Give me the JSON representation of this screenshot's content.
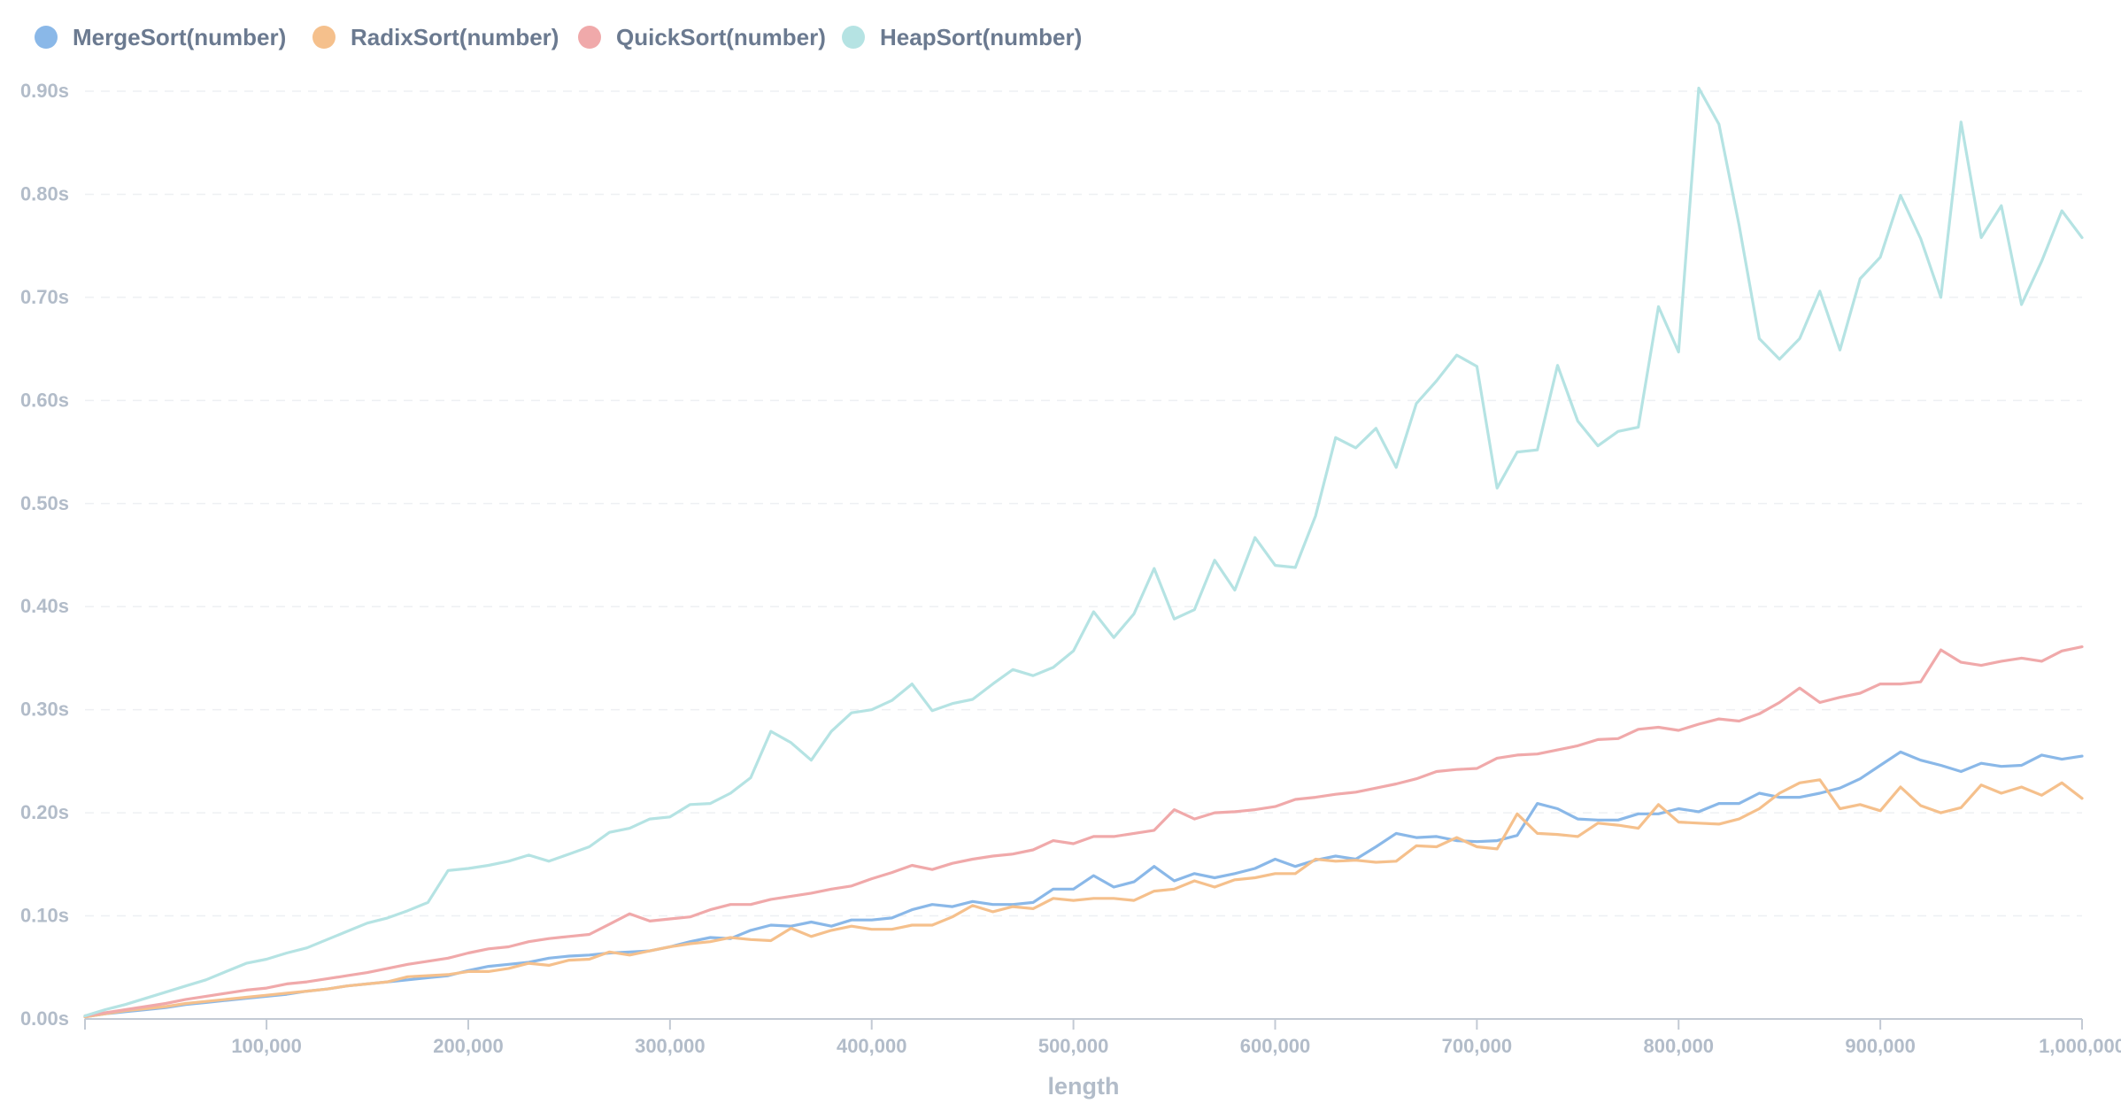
{
  "chart_data": {
    "type": "line",
    "title": "",
    "xlabel": "length",
    "ylabel": "",
    "xlim": [
      10000,
      1000000
    ],
    "ylim": [
      0,
      0.9
    ],
    "grid": "horizontal dashed",
    "legend_position": "top-left",
    "x_ticks": [
      100000,
      200000,
      300000,
      400000,
      500000,
      600000,
      700000,
      800000,
      900000,
      1000000
    ],
    "x_tick_labels": [
      "100,000",
      "200,000",
      "300,000",
      "400,000",
      "500,000",
      "600,000",
      "700,000",
      "800,000",
      "900,000",
      "1,000,000"
    ],
    "y_ticks": [
      0,
      0.1,
      0.2,
      0.3,
      0.4,
      0.5,
      0.6,
      0.7,
      0.8,
      0.9
    ],
    "y_tick_labels": [
      "0.00s",
      "0.10s",
      "0.20s",
      "0.30s",
      "0.40s",
      "0.50s",
      "0.60s",
      "0.70s",
      "0.80s",
      "0.90s"
    ],
    "x": [
      10000,
      20000,
      30000,
      40000,
      50000,
      60000,
      70000,
      80000,
      90000,
      100000,
      110000,
      120000,
      130000,
      140000,
      150000,
      160000,
      170000,
      180000,
      190000,
      200000,
      210000,
      220000,
      230000,
      240000,
      250000,
      260000,
      270000,
      280000,
      290000,
      300000,
      310000,
      320000,
      330000,
      340000,
      350000,
      360000,
      370000,
      380000,
      390000,
      400000,
      410000,
      420000,
      430000,
      440000,
      450000,
      460000,
      470000,
      480000,
      490000,
      500000,
      510000,
      520000,
      530000,
      540000,
      550000,
      560000,
      570000,
      580000,
      590000,
      600000,
      610000,
      620000,
      630000,
      640000,
      650000,
      660000,
      670000,
      680000,
      690000,
      700000,
      710000,
      720000,
      730000,
      740000,
      750000,
      760000,
      770000,
      780000,
      790000,
      800000,
      810000,
      820000,
      830000,
      840000,
      850000,
      860000,
      870000,
      880000,
      890000,
      900000,
      910000,
      920000,
      930000,
      940000,
      950000,
      960000,
      970000,
      980000,
      990000,
      1000000
    ],
    "series": [
      {
        "name": "MergeSort(number)",
        "color": "#8ab8e8",
        "values": [
          0.002,
          0.005,
          0.007,
          0.009,
          0.011,
          0.014,
          0.016,
          0.018,
          0.02,
          0.022,
          0.024,
          0.027,
          0.029,
          0.032,
          0.034,
          0.036,
          0.038,
          0.04,
          0.042,
          0.047,
          0.051,
          0.053,
          0.055,
          0.059,
          0.061,
          0.062,
          0.064,
          0.065,
          0.066,
          0.07,
          0.075,
          0.079,
          0.078,
          0.086,
          0.091,
          0.09,
          0.094,
          0.09,
          0.096,
          0.096,
          0.098,
          0.106,
          0.111,
          0.109,
          0.114,
          0.111,
          0.111,
          0.113,
          0.126,
          0.126,
          0.139,
          0.128,
          0.133,
          0.148,
          0.134,
          0.141,
          0.137,
          0.141,
          0.146,
          0.155,
          0.148,
          0.154,
          0.158,
          0.155,
          0.167,
          0.18,
          0.176,
          0.177,
          0.173,
          0.172,
          0.173,
          0.178,
          0.209,
          0.204,
          0.194,
          0.193,
          0.193,
          0.199,
          0.199,
          0.204,
          0.201,
          0.209,
          0.209,
          0.219,
          0.215,
          0.215,
          0.219,
          0.224,
          0.233,
          0.246,
          0.259,
          0.251,
          0.246,
          0.24,
          0.248,
          0.245,
          0.246,
          0.256,
          0.252,
          0.255
        ]
      },
      {
        "name": "RadixSort(number)",
        "color": "#f5c08c",
        "values": [
          0.002,
          0.005,
          0.008,
          0.01,
          0.012,
          0.015,
          0.017,
          0.019,
          0.021,
          0.023,
          0.025,
          0.027,
          0.029,
          0.032,
          0.034,
          0.036,
          0.041,
          0.042,
          0.043,
          0.046,
          0.046,
          0.049,
          0.054,
          0.052,
          0.057,
          0.058,
          0.065,
          0.062,
          0.066,
          0.07,
          0.073,
          0.075,
          0.079,
          0.077,
          0.076,
          0.088,
          0.08,
          0.086,
          0.09,
          0.087,
          0.087,
          0.091,
          0.091,
          0.099,
          0.11,
          0.104,
          0.109,
          0.107,
          0.117,
          0.115,
          0.117,
          0.117,
          0.115,
          0.124,
          0.126,
          0.134,
          0.128,
          0.135,
          0.137,
          0.141,
          0.141,
          0.155,
          0.153,
          0.154,
          0.152,
          0.153,
          0.168,
          0.167,
          0.176,
          0.167,
          0.165,
          0.199,
          0.18,
          0.179,
          0.177,
          0.19,
          0.188,
          0.185,
          0.208,
          0.191,
          0.19,
          0.189,
          0.194,
          0.204,
          0.219,
          0.229,
          0.232,
          0.204,
          0.208,
          0.202,
          0.225,
          0.207,
          0.2,
          0.205,
          0.227,
          0.219,
          0.225,
          0.217,
          0.229,
          0.214
        ]
      },
      {
        "name": "QuickSort(number)",
        "color": "#f0a9aa",
        "values": [
          0.003,
          0.006,
          0.009,
          0.012,
          0.015,
          0.019,
          0.022,
          0.025,
          0.028,
          0.03,
          0.034,
          0.036,
          0.039,
          0.042,
          0.045,
          0.049,
          0.053,
          0.056,
          0.059,
          0.064,
          0.068,
          0.07,
          0.075,
          0.078,
          0.08,
          0.082,
          0.092,
          0.102,
          0.095,
          0.097,
          0.099,
          0.106,
          0.111,
          0.111,
          0.116,
          0.119,
          0.122,
          0.126,
          0.129,
          0.136,
          0.142,
          0.149,
          0.145,
          0.151,
          0.155,
          0.158,
          0.16,
          0.164,
          0.173,
          0.17,
          0.177,
          0.177,
          0.18,
          0.183,
          0.203,
          0.194,
          0.2,
          0.201,
          0.203,
          0.206,
          0.213,
          0.215,
          0.218,
          0.22,
          0.224,
          0.228,
          0.233,
          0.24,
          0.242,
          0.243,
          0.253,
          0.256,
          0.257,
          0.261,
          0.265,
          0.271,
          0.272,
          0.281,
          0.283,
          0.28,
          0.286,
          0.291,
          0.289,
          0.296,
          0.307,
          0.321,
          0.307,
          0.312,
          0.316,
          0.325,
          0.325,
          0.327,
          0.358,
          0.346,
          0.343,
          0.347,
          0.35,
          0.347,
          0.357,
          0.361
        ]
      },
      {
        "name": "HeapSort(number)",
        "color": "#b5e3e3",
        "values": [
          0.003,
          0.009,
          0.014,
          0.02,
          0.026,
          0.032,
          0.038,
          0.046,
          0.054,
          0.058,
          0.064,
          0.069,
          0.077,
          0.085,
          0.093,
          0.098,
          0.105,
          0.113,
          0.144,
          0.146,
          0.149,
          0.153,
          0.159,
          0.153,
          0.16,
          0.167,
          0.181,
          0.185,
          0.194,
          0.196,
          0.208,
          0.209,
          0.219,
          0.234,
          0.279,
          0.268,
          0.251,
          0.279,
          0.297,
          0.3,
          0.309,
          0.325,
          0.299,
          0.306,
          0.31,
          0.325,
          0.339,
          0.333,
          0.341,
          0.357,
          0.395,
          0.37,
          0.393,
          0.437,
          0.388,
          0.397,
          0.445,
          0.416,
          0.467,
          0.44,
          0.438,
          0.488,
          0.564,
          0.554,
          0.573,
          0.535,
          0.597,
          0.619,
          0.644,
          0.633,
          0.515,
          0.55,
          0.552,
          0.634,
          0.58,
          0.556,
          0.57,
          0.574,
          0.691,
          0.647,
          0.903,
          0.868,
          0.77,
          0.66,
          0.64,
          0.66,
          0.706,
          0.649,
          0.718,
          0.739,
          0.799,
          0.757,
          0.7,
          0.87,
          0.758,
          0.789,
          0.693,
          0.735,
          0.784,
          0.758
        ]
      }
    ]
  }
}
